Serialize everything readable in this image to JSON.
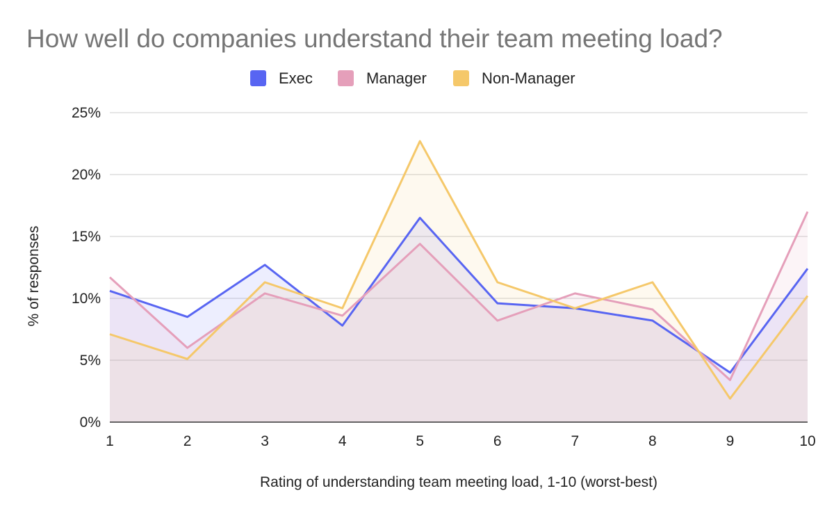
{
  "chart_data": {
    "type": "area",
    "title": "How well do companies understand their team meeting load?",
    "xlabel": "Rating of understanding team meeting load, 1-10 (worst-best)",
    "ylabel": "% of responses",
    "categories": [
      "1",
      "2",
      "3",
      "4",
      "5",
      "6",
      "7",
      "8",
      "9",
      "10"
    ],
    "ylim": [
      0,
      25
    ],
    "yticks": [
      {
        "value": 0,
        "label": "0%"
      },
      {
        "value": 5,
        "label": "5%"
      },
      {
        "value": 10,
        "label": "10%"
      },
      {
        "value": 15,
        "label": "15%"
      },
      {
        "value": 20,
        "label": "20%"
      },
      {
        "value": 25,
        "label": "25%"
      }
    ],
    "grid": true,
    "legend_position": "top",
    "series": [
      {
        "name": "Exec",
        "color": "#5865f2",
        "values": [
          10.6,
          8.5,
          12.7,
          7.8,
          16.5,
          9.6,
          9.2,
          8.2,
          4.0,
          12.4
        ]
      },
      {
        "name": "Manager",
        "color": "#e59fba",
        "values": [
          11.7,
          6.0,
          10.4,
          8.6,
          14.4,
          8.2,
          10.4,
          9.1,
          3.4,
          17.0
        ]
      },
      {
        "name": "Non-Manager",
        "color": "#f5c86a",
        "values": [
          7.1,
          5.1,
          11.3,
          9.2,
          22.7,
          11.3,
          9.2,
          11.3,
          1.9,
          10.2
        ]
      }
    ]
  }
}
